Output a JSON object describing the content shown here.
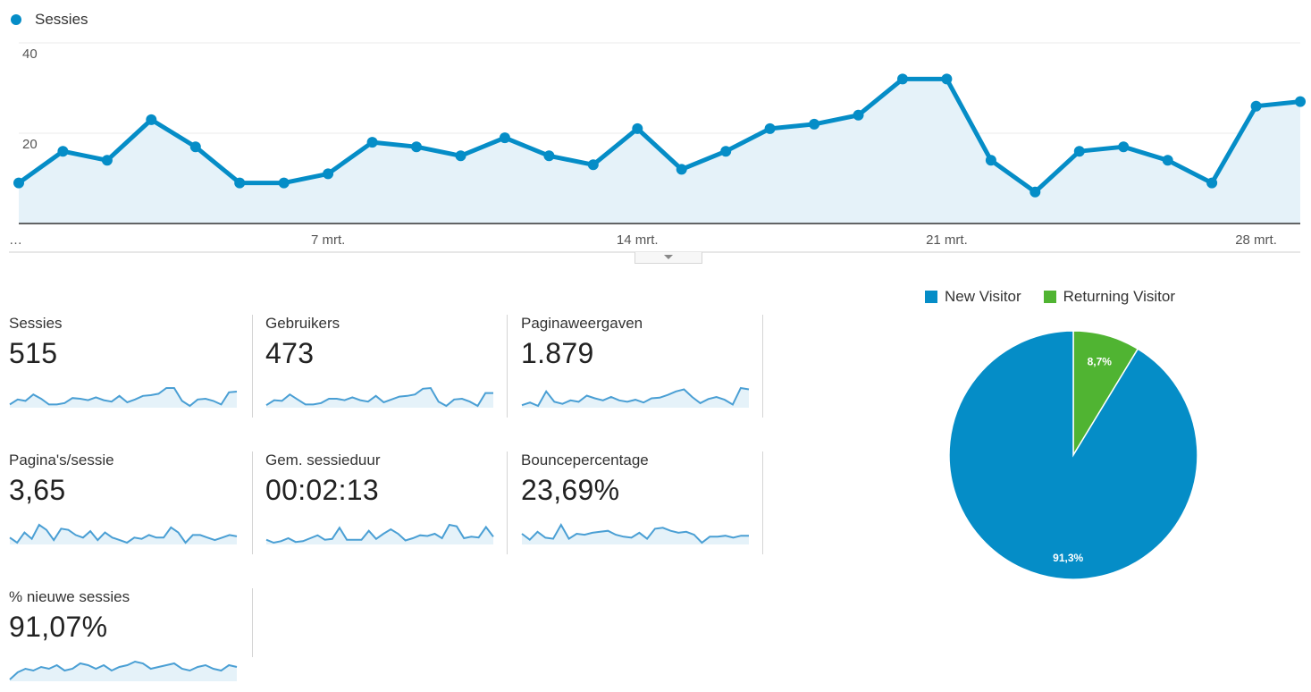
{
  "chart_data": [
    {
      "type": "area",
      "series": [
        {
          "name": "Sessies",
          "values": [
            9,
            16,
            14,
            23,
            17,
            9,
            9,
            11,
            18,
            17,
            15,
            19,
            15,
            13,
            21,
            12,
            16,
            21,
            22,
            24,
            32,
            32,
            14,
            7,
            16,
            17,
            14,
            9,
            26,
            27
          ]
        }
      ],
      "x_labels": [
        "…",
        "7 mrt.",
        "14 mrt.",
        "21 mrt.",
        "28 mrt."
      ],
      "ylim": [
        0,
        40
      ],
      "y_ticks": [
        "20",
        "40"
      ],
      "grid": true,
      "legend": "top-left",
      "color": "#058dc7",
      "fill_color": "#e5f2f9"
    },
    {
      "type": "pie",
      "categories": [
        "New Visitor",
        "Returning Visitor"
      ],
      "values": [
        91.3,
        8.7
      ],
      "labels": [
        "91,3%",
        "8,7%"
      ],
      "colors": [
        "#058dc7",
        "#50b432"
      ],
      "legend": "top"
    }
  ],
  "metrics": [
    {
      "label": "Sessies",
      "value": "515",
      "spark": [
        9,
        16,
        14,
        23,
        17,
        9,
        9,
        11,
        18,
        17,
        15,
        19,
        15,
        13,
        21,
        12,
        16,
        21,
        22,
        24,
        32,
        32,
        14,
        7,
        16,
        17,
        14,
        9,
        26,
        27
      ]
    },
    {
      "label": "Gebruikers",
      "value": "473",
      "spark": [
        7,
        14,
        13,
        22,
        15,
        8,
        8,
        10,
        16,
        16,
        14,
        18,
        14,
        12,
        20,
        11,
        15,
        19,
        20,
        22,
        30,
        31,
        12,
        6,
        15,
        16,
        12,
        6,
        24,
        24
      ]
    },
    {
      "label": "Paginaweergaven",
      "value": "1.879",
      "spark": [
        20,
        28,
        18,
        60,
        30,
        24,
        34,
        30,
        48,
        40,
        34,
        44,
        34,
        30,
        36,
        28,
        40,
        42,
        50,
        60,
        66,
        44,
        26,
        38,
        44,
        36,
        22,
        70,
        66
      ]
    },
    {
      "label": "Pagina's/sessie",
      "value": "3,65",
      "spark": [
        3.4,
        3.0,
        3.8,
        3.3,
        4.4,
        4.0,
        3.2,
        4.1,
        4.0,
        3.6,
        3.4,
        3.9,
        3.2,
        3.8,
        3.4,
        3.2,
        3.0,
        3.4,
        3.3,
        3.6,
        3.4,
        3.4,
        4.2,
        3.8,
        3.0,
        3.6,
        3.6,
        3.4,
        3.2,
        3.4,
        3.6,
        3.5
      ]
    },
    {
      "label": "Gem. sessieduur",
      "value": "00:02:13",
      "spark": [
        1.6,
        1.2,
        1.4,
        1.8,
        1.3,
        1.4,
        1.8,
        2.2,
        1.6,
        1.7,
        3.2,
        1.6,
        1.6,
        1.6,
        2.8,
        1.7,
        2.4,
        3.0,
        2.4,
        1.5,
        1.8,
        2.2,
        2.1,
        2.4,
        1.8,
        3.6,
        3.4,
        1.8,
        2.0,
        1.9,
        3.3,
        2.0
      ]
    },
    {
      "label": "Bouncepercentage",
      "value": "23,69%",
      "spark": [
        22,
        10,
        26,
        14,
        12,
        40,
        12,
        22,
        20,
        24,
        26,
        28,
        20,
        16,
        14,
        24,
        12,
        32,
        34,
        28,
        24,
        26,
        20,
        4,
        16,
        16,
        18,
        14,
        18,
        18
      ]
    },
    {
      "label": "% nieuwe sessies",
      "value": "91,07%",
      "spark": [
        80,
        88,
        92,
        90,
        94,
        92,
        96,
        90,
        92,
        98,
        96,
        92,
        96,
        90,
        94,
        96,
        100,
        98,
        92,
        94,
        96,
        98,
        92,
        90,
        94,
        96,
        92,
        90,
        96,
        94
      ]
    }
  ]
}
